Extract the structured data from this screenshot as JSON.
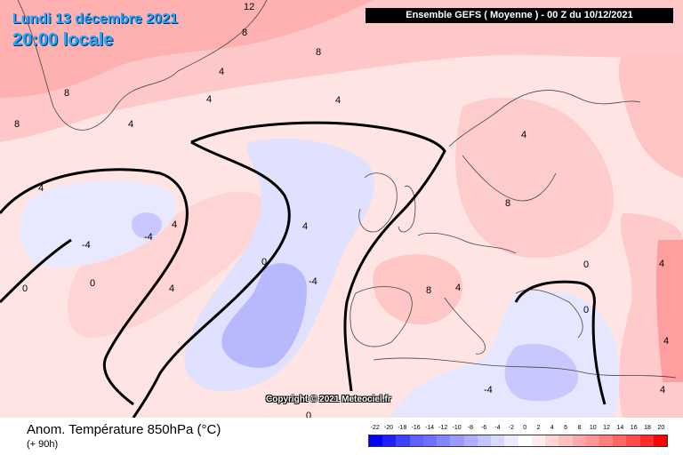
{
  "header": {
    "date": "Lundi 13 décembre 2021",
    "local_time": "20:00 locale",
    "model_run": "Ensemble GEFS  ( Moyenne )  -  00 Z du 10/12/2021"
  },
  "map": {
    "copyright": "Copyright © 2021 Meteociel.fr",
    "isoline_labels": [
      "12",
      "8",
      "8",
      "4",
      "8",
      "4",
      "4",
      "8",
      "4",
      "4",
      "8",
      "4",
      "4",
      "0",
      "-4",
      "-4",
      "0",
      "4",
      "0",
      "4",
      "-4",
      "8",
      "4",
      "0",
      "0",
      "-4",
      "4",
      "4",
      "4",
      "0"
    ]
  },
  "footer": {
    "field_title": "Anom. Température 850hPa (°C)",
    "lead_time": "(+ 90h)"
  },
  "legend": {
    "ticks": [
      "-22",
      "-20",
      "-18",
      "-16",
      "-14",
      "-12",
      "-10",
      "-8",
      "-6",
      "-4",
      "-2",
      "0",
      "2",
      "4",
      "6",
      "8",
      "10",
      "12",
      "14",
      "16",
      "18",
      "20"
    ],
    "colors": [
      "#0000ff",
      "#2020ff",
      "#4040ff",
      "#6060ff",
      "#7070ff",
      "#8585ff",
      "#9a9aff",
      "#afafff",
      "#c4c4ff",
      "#d8d8ff",
      "#ececff",
      "#ffffff",
      "#ffecec",
      "#ffd6d6",
      "#ffc0c0",
      "#ffaaaa",
      "#ff9494",
      "#ff7e7e",
      "#ff6666",
      "#ff4c4c",
      "#ff2c2c",
      "#ff0000"
    ]
  }
}
